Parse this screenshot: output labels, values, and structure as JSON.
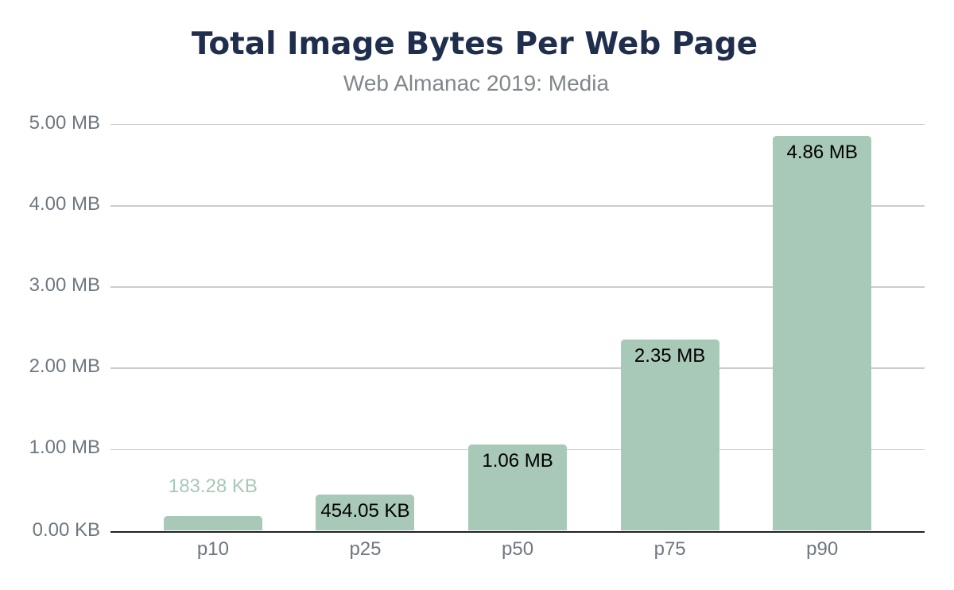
{
  "page": {
    "background": "#ffffff"
  },
  "chart_data": {
    "type": "bar",
    "title": "Total Image Bytes Per Web Page",
    "subtitle": "Web Almanac 2019: Media",
    "categories": [
      "p10",
      "p25",
      "p50",
      "p75",
      "p90"
    ],
    "series": [
      {
        "name": "Total image bytes",
        "values_mb": [
          0.179,
          0.443,
          1.06,
          2.35,
          4.86
        ],
        "data_labels": [
          "183.28 KB",
          "454.05 KB",
          "1.06 MB",
          "2.35 MB",
          "4.86 MB"
        ],
        "label_placement": [
          "above",
          "inside",
          "inside",
          "inside",
          "inside"
        ]
      }
    ],
    "xlabel": "",
    "ylabel": "",
    "y_axis": {
      "range_mb": [
        0,
        5
      ],
      "ticks": [
        {
          "value": 0,
          "label": "0.00 KB"
        },
        {
          "value": 1,
          "label": "1.00 MB"
        },
        {
          "value": 2,
          "label": "2.00 MB"
        },
        {
          "value": 3,
          "label": "3.00 MB"
        },
        {
          "value": 4,
          "label": "4.00 MB"
        },
        {
          "value": 5,
          "label": "5.00 MB"
        }
      ]
    },
    "grid": true,
    "legend": "none",
    "colors": {
      "bar": "#a8c8b8",
      "title": "#202e4d",
      "subtitle": "#80868b",
      "axis_label": "#6e7780",
      "gridline": "#cccccc",
      "axis_line": "#222222",
      "label_inside": "#000000",
      "label_outside": "#a8c8b8",
      "background": "#ffffff"
    }
  }
}
